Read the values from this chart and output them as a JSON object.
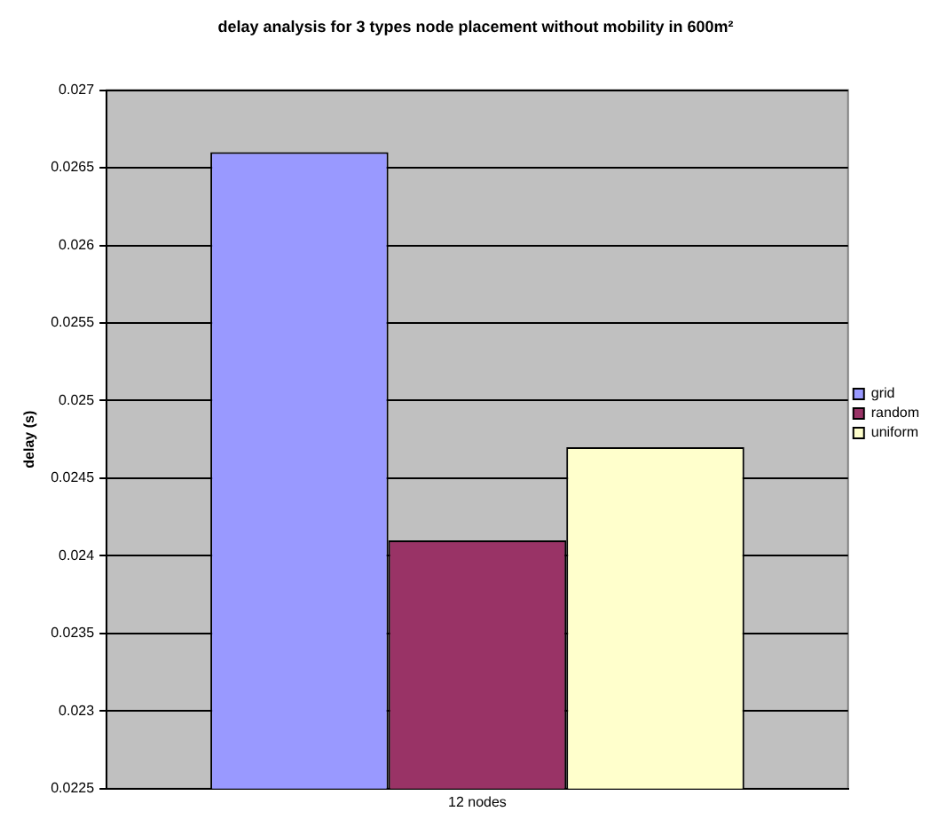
{
  "chart_data": {
    "type": "bar",
    "title": "delay analysis for 3 types node placement without mobility in 600m²",
    "ylabel": "delay (s)",
    "categories": [
      "12 nodes"
    ],
    "series": [
      {
        "name": "grid",
        "color": "#9999ff",
        "values": [
          0.0266
        ]
      },
      {
        "name": "random",
        "color": "#993366",
        "values": [
          0.0241
        ]
      },
      {
        "name": "uniform",
        "color": "#ffffcc",
        "values": [
          0.0247
        ]
      }
    ],
    "ylim": [
      0.0225,
      0.027
    ],
    "yticks": [
      0.0225,
      0.023,
      0.0235,
      0.024,
      0.0245,
      0.025,
      0.0255,
      0.026,
      0.0265,
      0.027
    ],
    "grid": "y",
    "legend": "right"
  }
}
